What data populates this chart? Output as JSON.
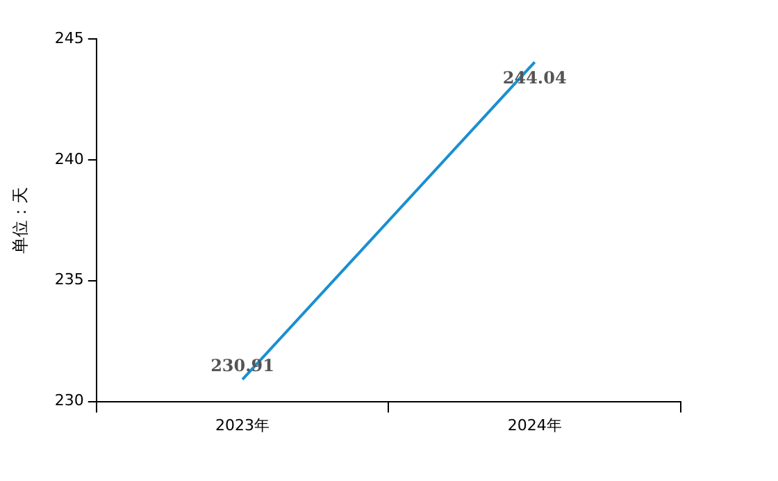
{
  "chart_data": {
    "type": "line",
    "ylabel": "单位：天",
    "categories": [
      "2023年",
      "2024年"
    ],
    "series": [
      {
        "color": "#1a8fd0",
        "values": [
          230.91,
          244.04
        ]
      }
    ],
    "ylim": [
      230,
      245
    ],
    "yticks": [
      230,
      235,
      240,
      245
    ],
    "grid": false,
    "legend": false,
    "marker": "none",
    "data_labels": true
  }
}
